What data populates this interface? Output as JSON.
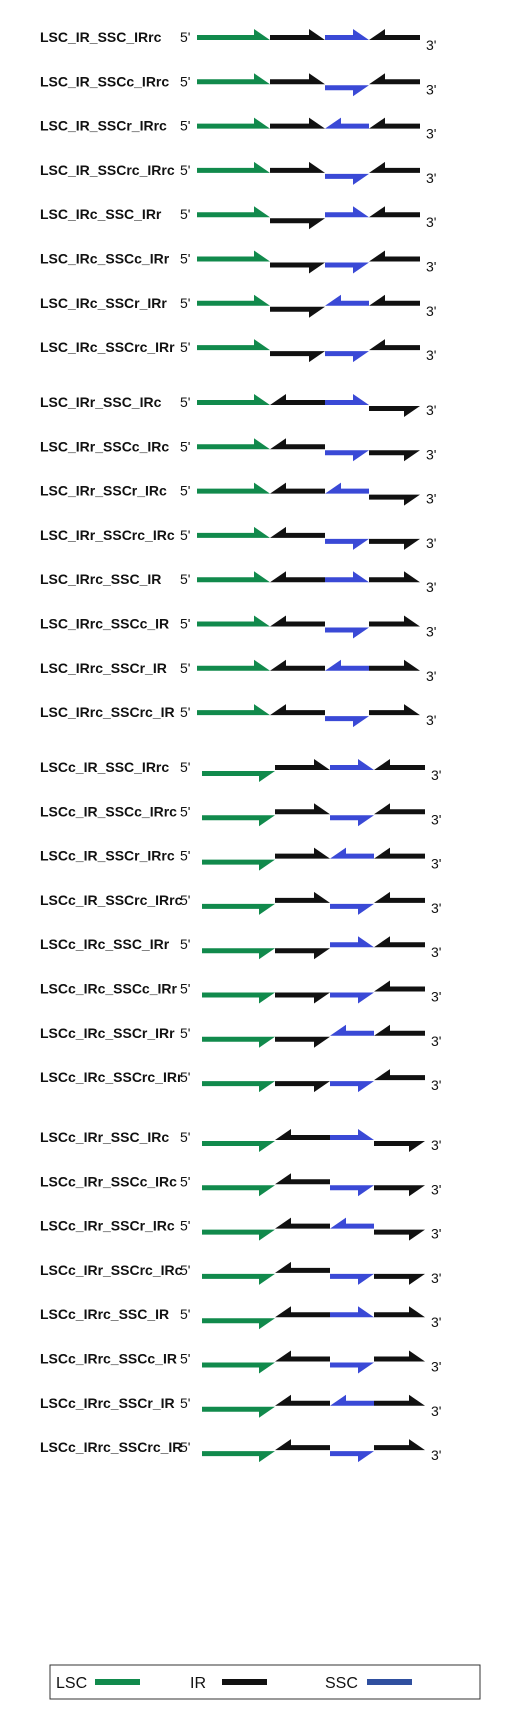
{
  "end_labels": {
    "five_prime": "5'",
    "three_prime": "3'"
  },
  "colors": {
    "LSC": "#118a4c",
    "IR": "#111111",
    "SSC": "#3a49d6",
    "legend_SSC": "#2f4f9f"
  },
  "legend": [
    {
      "label": "LSC",
      "segment": "LSC"
    },
    {
      "label": "IR",
      "segment": "IR"
    },
    {
      "label": "SSC",
      "segment": "SSC"
    }
  ],
  "groups": [
    {
      "rows": [
        {
          "label": "LSC_IR_SSC_IRrc",
          "orient": [
            "f",
            "f",
            "f",
            "r"
          ]
        },
        {
          "label": "LSC_IR_SSCc_IRrc",
          "orient": [
            "f",
            "f",
            "c",
            "r"
          ]
        },
        {
          "label": "LSC_IR_SSCr_IRrc",
          "orient": [
            "f",
            "f",
            "r",
            "r"
          ]
        },
        {
          "label": "LSC_IR_SSCrc_IRrc",
          "orient": [
            "f",
            "f",
            "c",
            "r"
          ]
        },
        {
          "label": "LSC_IRc_SSC_IRr",
          "orient": [
            "f",
            "c",
            "f",
            "r"
          ]
        },
        {
          "label": "LSC_IRc_SSCc_IRr",
          "orient": [
            "f",
            "c",
            "c",
            "r"
          ]
        },
        {
          "label": "LSC_IRc_SSCr_IRr",
          "orient": [
            "f",
            "c",
            "r",
            "r"
          ]
        },
        {
          "label": "LSC_IRc_SSCrc_IRr",
          "orient": [
            "f",
            "c",
            "c",
            "r"
          ]
        }
      ]
    },
    {
      "rows": [
        {
          "label": "LSC_IRr_SSC_IRc",
          "orient": [
            "f",
            "r",
            "f",
            "c"
          ]
        },
        {
          "label": "LSC_IRr_SSCc_IRc",
          "orient": [
            "f",
            "r",
            "c",
            "c"
          ]
        },
        {
          "label": "LSC_IRr_SSCr_IRc",
          "orient": [
            "f",
            "r",
            "r",
            "c"
          ]
        },
        {
          "label": "LSC_IRr_SSCrc_IRc",
          "orient": [
            "f",
            "r",
            "c",
            "c"
          ]
        },
        {
          "label": "LSC_IRrc_SSC_IR",
          "orient": [
            "f",
            "r",
            "f",
            "f"
          ]
        },
        {
          "label": "LSC_IRrc_SSCc_IR",
          "orient": [
            "f",
            "r",
            "c",
            "f"
          ]
        },
        {
          "label": "LSC_IRrc_SSCr_IR",
          "orient": [
            "f",
            "r",
            "r",
            "f"
          ]
        },
        {
          "label": "LSC_IRrc_SSCrc_IR",
          "orient": [
            "f",
            "r",
            "c",
            "f"
          ]
        }
      ]
    },
    {
      "rows": [
        {
          "label": "LSCc_IR_SSC_IRrc",
          "orient": [
            "c",
            "f",
            "f",
            "r"
          ]
        },
        {
          "label": "LSCc_IR_SSCc_IRrc",
          "orient": [
            "c",
            "f",
            "c",
            "r"
          ]
        },
        {
          "label": "LSCc_IR_SSCr_IRrc",
          "orient": [
            "c",
            "f",
            "r",
            "r"
          ]
        },
        {
          "label": "LSCc_IR_SSCrc_IRrc",
          "orient": [
            "c",
            "f",
            "c",
            "r"
          ]
        },
        {
          "label": "LSCc_IRc_SSC_IRr",
          "orient": [
            "c",
            "c",
            "f",
            "r"
          ]
        },
        {
          "label": "LSCc_IRc_SSCc_IRr",
          "orient": [
            "c",
            "c",
            "c",
            "r"
          ]
        },
        {
          "label": "LSCc_IRc_SSCr_IRr",
          "orient": [
            "c",
            "c",
            "r",
            "r"
          ]
        },
        {
          "label": "LSCc_IRc_SSCrc_IRr",
          "orient": [
            "c",
            "c",
            "c",
            "r"
          ]
        }
      ]
    },
    {
      "rows": [
        {
          "label": "LSCc_IRr_SSC_IRc",
          "orient": [
            "c",
            "r",
            "f",
            "c"
          ]
        },
        {
          "label": "LSCc_IRr_SSCc_IRc",
          "orient": [
            "c",
            "r",
            "c",
            "c"
          ]
        },
        {
          "label": "LSCc_IRr_SSCr_IRc",
          "orient": [
            "c",
            "r",
            "r",
            "c"
          ]
        },
        {
          "label": "LSCc_IRr_SSCrc_IRc",
          "orient": [
            "c",
            "r",
            "c",
            "c"
          ]
        },
        {
          "label": "LSCc_IRrc_SSC_IR",
          "orient": [
            "c",
            "r",
            "f",
            "f"
          ]
        },
        {
          "label": "LSCc_IRrc_SSCc_IR",
          "orient": [
            "c",
            "r",
            "c",
            "f"
          ]
        },
        {
          "label": "LSCc_IRrc_SSCr_IR",
          "orient": [
            "c",
            "r",
            "r",
            "f"
          ]
        },
        {
          "label": "LSCc_IRrc_SSCrc_IR",
          "orient": [
            "c",
            "r",
            "c",
            "f"
          ]
        }
      ]
    }
  ]
}
